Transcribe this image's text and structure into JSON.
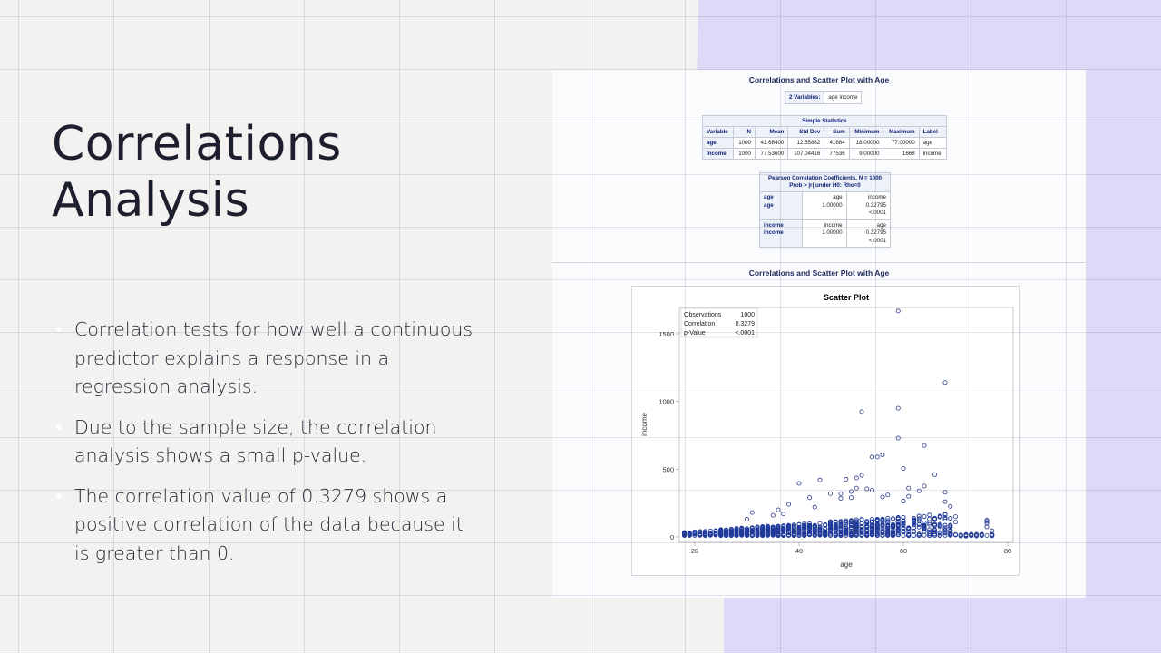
{
  "slide": {
    "title_lines": [
      "Correlations",
      "Analysis"
    ],
    "bullets": [
      "Correlation tests for how well a continuous predictor explains a response in a regression analysis.",
      "Due to the sample size, the correlation analysis shows a small p-value.",
      "The correlation value of 0.3279 shows a positive correlation of the data because it is greater than 0."
    ]
  },
  "colors": {
    "background": "#f3f2f0",
    "accent_purple": "#dcdaf6",
    "title_text": "#1d1f2e",
    "sas_header_text": "#112277",
    "marker": "#1f3a9a"
  },
  "sas_output": {
    "section1_title": "Correlations and Scatter Plot with Age",
    "variables_label": "2 Variables:",
    "variables_value": "age income",
    "simple_stats": {
      "caption": "Simple Statistics",
      "headers": [
        "Variable",
        "N",
        "Mean",
        "Std Dev",
        "Sum",
        "Minimum",
        "Maximum",
        "Label"
      ],
      "rows": [
        [
          "age",
          "1000",
          "41.68400",
          "12.55882",
          "41684",
          "18.00000",
          "77.00000",
          "age"
        ],
        [
          "income",
          "1000",
          "77.53600",
          "107.04416",
          "77536",
          "9.00000",
          "1668",
          "income"
        ]
      ]
    },
    "pearson": {
      "caption_line1": "Pearson Correlation Coefficients, N = 1000",
      "caption_line2": "Prob > |r| under H0: Rho=0",
      "rows": [
        {
          "row_label_1": "age",
          "row_label_2": "age",
          "c1": [
            "age",
            "1.00000",
            ""
          ],
          "c2": [
            "income",
            "0.32795",
            "<.0001"
          ]
        },
        {
          "row_label_1": "income",
          "row_label_2": "income",
          "c1": [
            "income",
            "1.00000",
            ""
          ],
          "c2": [
            "age",
            "0.32795",
            "<.0001"
          ]
        }
      ]
    },
    "section2_title": "Correlations and Scatter Plot with Age"
  },
  "chart_data": {
    "type": "scatter",
    "title": "Scatter Plot",
    "xlabel": "age",
    "ylabel": "income",
    "xlim": [
      17,
      81
    ],
    "ylim": [
      -40,
      1700
    ],
    "xticks": [
      20,
      40,
      60,
      80
    ],
    "yticks": [
      0,
      500,
      1000,
      1500
    ],
    "grid": false,
    "inset_stats": [
      {
        "label": "Observations",
        "value": "1000"
      },
      {
        "label": "Correlation",
        "value": "0.3279"
      },
      {
        "label": "p-Value",
        "value": "<.0001"
      }
    ],
    "notable_points": [
      {
        "x": 59,
        "y": 1668
      },
      {
        "x": 68,
        "y": 1140
      },
      {
        "x": 59,
        "y": 950
      },
      {
        "x": 52,
        "y": 925
      },
      {
        "x": 59,
        "y": 730
      },
      {
        "x": 64,
        "y": 675
      },
      {
        "x": 56,
        "y": 605
      },
      {
        "x": 55,
        "y": 590
      },
      {
        "x": 54,
        "y": 590
      },
      {
        "x": 60,
        "y": 505
      },
      {
        "x": 66,
        "y": 460
      },
      {
        "x": 52,
        "y": 455
      },
      {
        "x": 51,
        "y": 435
      },
      {
        "x": 49,
        "y": 425
      },
      {
        "x": 44,
        "y": 420
      },
      {
        "x": 40,
        "y": 395
      },
      {
        "x": 64,
        "y": 375
      },
      {
        "x": 61,
        "y": 360
      },
      {
        "x": 51,
        "y": 360
      },
      {
        "x": 53,
        "y": 355
      },
      {
        "x": 54,
        "y": 345
      },
      {
        "x": 63,
        "y": 340
      },
      {
        "x": 50,
        "y": 335
      },
      {
        "x": 68,
        "y": 330
      },
      {
        "x": 46,
        "y": 320
      },
      {
        "x": 48,
        "y": 320
      },
      {
        "x": 57,
        "y": 310
      },
      {
        "x": 61,
        "y": 300
      },
      {
        "x": 56,
        "y": 295
      },
      {
        "x": 42,
        "y": 290
      },
      {
        "x": 48,
        "y": 285
      },
      {
        "x": 50,
        "y": 290
      },
      {
        "x": 60,
        "y": 265
      },
      {
        "x": 68,
        "y": 260
      },
      {
        "x": 38,
        "y": 240
      },
      {
        "x": 69,
        "y": 225
      },
      {
        "x": 43,
        "y": 220
      },
      {
        "x": 36,
        "y": 200
      },
      {
        "x": 31,
        "y": 180
      },
      {
        "x": 37,
        "y": 170
      },
      {
        "x": 70,
        "y": 150
      },
      {
        "x": 35,
        "y": 160
      },
      {
        "x": 30,
        "y": 130
      },
      {
        "x": 70,
        "y": 110
      },
      {
        "x": 76,
        "y": 115
      },
      {
        "x": 77,
        "y": 45
      },
      {
        "x": 73,
        "y": 20
      },
      {
        "x": 71,
        "y": 10
      },
      {
        "x": 72,
        "y": 10
      },
      {
        "x": 74,
        "y": 10
      },
      {
        "x": 75,
        "y": 20
      },
      {
        "x": 76,
        "y": 10
      },
      {
        "x": 18,
        "y": 15
      }
    ],
    "bulk_description": "Dense cluster of ~1000 points at integer ages 18-77, mostly income 0-150, spread increasing with age (heteroscedastic)."
  }
}
